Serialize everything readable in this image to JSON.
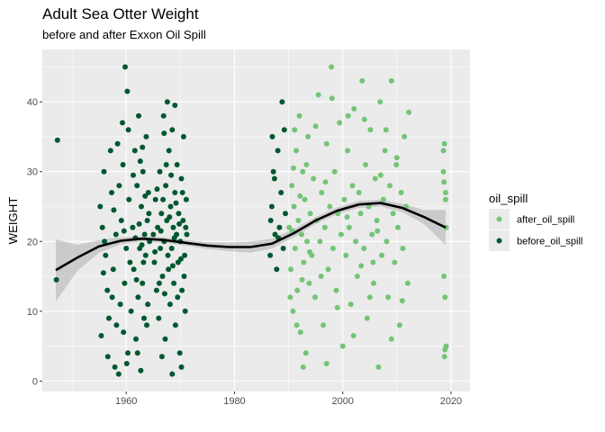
{
  "chart_data": {
    "type": "scatter",
    "title": "Adult Sea Otter Weight",
    "subtitle": "before and after Exxon Oil Spill",
    "xlabel": "",
    "ylabel": "WEIGHT",
    "xlim": [
      1944.5,
      2023.5
    ],
    "ylim": [
      -1.5,
      47.5
    ],
    "x_ticks": [
      1960,
      1980,
      2000,
      2020
    ],
    "y_ticks": [
      0,
      10,
      20,
      30,
      40
    ],
    "grid": true,
    "legend": {
      "title": "oil_spill",
      "position": "right",
      "entries": [
        {
          "label": "after_oil_spill",
          "color": "#74c476"
        },
        {
          "label": "before_oil_spill",
          "color": "#00582f"
        }
      ]
    },
    "colors": {
      "panel_background": "#ebebeb",
      "grid": "#ffffff",
      "smooth_line": "#000000",
      "smooth_band": "#999999"
    },
    "series": [
      {
        "name": "before_oil_spill",
        "color": "#00582f",
        "points": [
          [
            1947.3,
            34.5
          ],
          [
            1947.1,
            14.5
          ],
          [
            1955.2,
            25.0
          ],
          [
            1955.6,
            22.0
          ],
          [
            1955.9,
            30.0
          ],
          [
            1956.2,
            18.0
          ],
          [
            1956.5,
            13.0
          ],
          [
            1956.8,
            9.0
          ],
          [
            1957.1,
            33.0
          ],
          [
            1957.3,
            27.0
          ],
          [
            1957.6,
            16.0
          ],
          [
            1957.9,
            2.0
          ],
          [
            1958.1,
            21.0
          ],
          [
            1958.4,
            34.0
          ],
          [
            1958.6,
            1.0
          ],
          [
            1958.9,
            11.0
          ],
          [
            1955.4,
            6.5
          ],
          [
            1956.6,
            3.5
          ],
          [
            1957.4,
            12.0
          ],
          [
            1958.2,
            8.0
          ],
          [
            1956.0,
            20.0
          ],
          [
            1957.7,
            24.5
          ],
          [
            1955.8,
            15.5
          ],
          [
            1958.7,
            28.0
          ],
          [
            1959.1,
            23.0
          ],
          [
            1959.3,
            37.0
          ],
          [
            1959.5,
            7.0
          ],
          [
            1959.7,
            14.0
          ],
          [
            1959.8,
            45.0
          ],
          [
            1960.0,
            19.0
          ],
          [
            1960.2,
            41.5
          ],
          [
            1960.3,
            4.0
          ],
          [
            1960.5,
            26.0
          ],
          [
            1960.7,
            17.0
          ],
          [
            1960.9,
            10.0
          ],
          [
            1959.4,
            31.0
          ],
          [
            1960.4,
            36.0
          ],
          [
            1960.1,
            2.5
          ],
          [
            1959.6,
            21.5
          ],
          [
            1961.2,
            22.0
          ],
          [
            1961.4,
            16.0
          ],
          [
            1961.6,
            33.0
          ],
          [
            1961.8,
            6.0
          ],
          [
            1962.0,
            28.0
          ],
          [
            1962.2,
            12.0
          ],
          [
            1962.3,
            38.0
          ],
          [
            1962.5,
            19.0
          ],
          [
            1962.7,
            1.5
          ],
          [
            1962.8,
            25.0
          ],
          [
            1963.0,
            14.0
          ],
          [
            1963.1,
            30.0
          ],
          [
            1963.3,
            9.0
          ],
          [
            1963.4,
            21.0
          ],
          [
            1963.6,
            18.0
          ],
          [
            1963.7,
            35.0
          ],
          [
            1963.9,
            23.0
          ],
          [
            1964.0,
            11.0
          ],
          [
            1964.1,
            27.0
          ],
          [
            1964.3,
            20.0
          ],
          [
            1961.3,
            29.5
          ],
          [
            1961.7,
            20.5
          ],
          [
            1962.1,
            4.0
          ],
          [
            1962.6,
            31.5
          ],
          [
            1963.2,
            17.0
          ],
          [
            1963.8,
            8.0
          ],
          [
            1964.2,
            24.0
          ],
          [
            1962.4,
            22.5
          ],
          [
            1963.5,
            26.5
          ],
          [
            1961.9,
            14.5
          ],
          [
            1962.9,
            19.5
          ],
          [
            1963.0,
            33.5
          ],
          [
            1965.0,
            21.0
          ],
          [
            1965.2,
            17.0
          ],
          [
            1965.4,
            26.0
          ],
          [
            1965.6,
            13.0
          ],
          [
            1965.8,
            22.0
          ],
          [
            1966.0,
            9.0
          ],
          [
            1966.2,
            30.0
          ],
          [
            1966.3,
            19.0
          ],
          [
            1966.5,
            24.0
          ],
          [
            1966.7,
            15.0
          ],
          [
            1966.9,
            38.0
          ],
          [
            1967.0,
            20.0
          ],
          [
            1967.2,
            6.0
          ],
          [
            1967.3,
            28.0
          ],
          [
            1967.5,
            23.0
          ],
          [
            1967.6,
            40.0
          ],
          [
            1967.8,
            16.0
          ],
          [
            1967.9,
            33.0
          ],
          [
            1968.1,
            11.0
          ],
          [
            1968.2,
            25.0
          ],
          [
            1968.4,
            19.0
          ],
          [
            1968.5,
            36.0
          ],
          [
            1968.7,
            22.0
          ],
          [
            1968.8,
            14.0
          ],
          [
            1969.0,
            27.0
          ],
          [
            1969.1,
            8.0
          ],
          [
            1969.3,
            21.0
          ],
          [
            1969.4,
            31.0
          ],
          [
            1969.6,
            17.0
          ],
          [
            1969.7,
            24.0
          ],
          [
            1969.9,
            4.0
          ],
          [
            1970.0,
            20.0
          ],
          [
            1970.2,
            29.0
          ],
          [
            1970.3,
            13.0
          ],
          [
            1970.5,
            23.0
          ],
          [
            1970.6,
            35.0
          ],
          [
            1970.8,
            18.0
          ],
          [
            1970.9,
            10.0
          ],
          [
            1971.1,
            26.0
          ],
          [
            1971.2,
            21.0
          ],
          [
            1965.3,
            18.5
          ],
          [
            1965.7,
            27.5
          ],
          [
            1966.1,
            14.0
          ],
          [
            1966.4,
            21.5
          ],
          [
            1966.8,
            26.0
          ],
          [
            1967.1,
            12.5
          ],
          [
            1967.4,
            31.0
          ],
          [
            1967.7,
            18.0
          ],
          [
            1968.0,
            23.5
          ],
          [
            1968.3,
            29.5
          ],
          [
            1968.6,
            16.5
          ],
          [
            1968.9,
            20.5
          ],
          [
            1969.2,
            25.5
          ],
          [
            1969.5,
            12.0
          ],
          [
            1969.8,
            22.5
          ],
          [
            1970.1,
            17.5
          ],
          [
            1970.4,
            27.0
          ],
          [
            1970.7,
            15.0
          ],
          [
            1971.0,
            22.0
          ],
          [
            1966.6,
            3.5
          ],
          [
            1969.0,
            39.5
          ],
          [
            1970.2,
            2.0
          ],
          [
            1967.0,
            35.5
          ],
          [
            1968.5,
            1.0
          ],
          [
            1986.6,
            18.0
          ],
          [
            1986.9,
            25.0
          ],
          [
            1987.2,
            30.0
          ],
          [
            1987.5,
            21.0
          ],
          [
            1987.8,
            16.0
          ],
          [
            1988.0,
            33.0
          ],
          [
            1988.3,
            22.0
          ],
          [
            1988.6,
            27.0
          ],
          [
            1988.8,
            40.0
          ],
          [
            1989.0,
            19.0
          ],
          [
            1989.2,
            36.0
          ],
          [
            1989.4,
            24.0
          ],
          [
            1986.7,
            23.0
          ],
          [
            1987.0,
            35.0
          ],
          [
            1987.4,
            29.0
          ],
          [
            1988.1,
            20.5
          ]
        ]
      },
      {
        "name": "after_oil_spill",
        "color": "#74c476",
        "points": [
          [
            1990.1,
            22.0
          ],
          [
            1990.4,
            16.0
          ],
          [
            1990.6,
            28.0
          ],
          [
            1990.8,
            10.0
          ],
          [
            1991.0,
            25.0
          ],
          [
            1991.2,
            19.0
          ],
          [
            1991.4,
            33.0
          ],
          [
            1991.6,
            13.0
          ],
          [
            1991.8,
            23.0
          ],
          [
            1992.0,
            38.0
          ],
          [
            1992.2,
            7.0
          ],
          [
            1992.4,
            21.0
          ],
          [
            1992.6,
            30.0
          ],
          [
            1992.8,
            17.0
          ],
          [
            1993.0,
            26.0
          ],
          [
            1993.2,
            4.0
          ],
          [
            1993.4,
            20.0
          ],
          [
            1993.6,
            35.0
          ],
          [
            1993.8,
            14.0
          ],
          [
            1994.0,
            24.0
          ],
          [
            1990.3,
            12.0
          ],
          [
            1990.9,
            30.5
          ],
          [
            1991.5,
            8.0
          ],
          [
            1992.1,
            26.5
          ],
          [
            1992.7,
            2.0
          ],
          [
            1993.3,
            31.0
          ],
          [
            1993.9,
            18.5
          ],
          [
            1991.1,
            36.0
          ],
          [
            1992.5,
            14.5
          ],
          [
            1990.7,
            21.5
          ],
          [
            1994.3,
            18.0
          ],
          [
            1994.6,
            29.0
          ],
          [
            1994.9,
            12.0
          ],
          [
            1995.2,
            23.0
          ],
          [
            1995.5,
            41.0
          ],
          [
            1995.8,
            20.0
          ],
          [
            1996.1,
            27.0
          ],
          [
            1996.4,
            8.0
          ],
          [
            1996.7,
            22.0
          ],
          [
            1997.0,
            34.0
          ],
          [
            1997.3,
            16.0
          ],
          [
            1997.6,
            25.0
          ],
          [
            1997.9,
            45.0
          ],
          [
            1998.2,
            19.0
          ],
          [
            1998.5,
            30.0
          ],
          [
            1998.8,
            13.0
          ],
          [
            1999.1,
            24.0
          ],
          [
            1999.4,
            37.0
          ],
          [
            1999.7,
            21.0
          ],
          [
            2000.0,
            5.0
          ],
          [
            2000.3,
            26.0
          ],
          [
            2000.6,
            18.0
          ],
          [
            2000.9,
            33.0
          ],
          [
            2001.2,
            22.0
          ],
          [
            2001.5,
            11.0
          ],
          [
            2001.8,
            28.0
          ],
          [
            2002.1,
            39.0
          ],
          [
            2002.4,
            20.0
          ],
          [
            2002.7,
            15.0
          ],
          [
            2003.0,
            27.0
          ],
          [
            2003.3,
            24.0
          ],
          [
            2003.6,
            43.0
          ],
          [
            2003.9,
            19.0
          ],
          [
            2004.2,
            31.0
          ],
          [
            2004.5,
            9.0
          ],
          [
            2004.8,
            25.0
          ],
          [
            2005.1,
            36.0
          ],
          [
            2005.4,
            21.0
          ],
          [
            2005.7,
            14.0
          ],
          [
            2006.0,
            29.0
          ],
          [
            2006.3,
            23.0
          ],
          [
            2006.6,
            2.0
          ],
          [
            2006.9,
            40.0
          ],
          [
            2007.2,
            18.0
          ],
          [
            2007.5,
            26.0
          ],
          [
            2007.8,
            33.0
          ],
          [
            2008.1,
            20.0
          ],
          [
            2008.4,
            12.0
          ],
          [
            2008.7,
            28.0
          ],
          [
            2009.0,
            43.0
          ],
          [
            2009.3,
            24.0
          ],
          [
            2009.6,
            17.0
          ],
          [
            2009.9,
            31.0
          ],
          [
            2010.2,
            22.0
          ],
          [
            2010.5,
            8.0
          ],
          [
            2010.8,
            27.0
          ],
          [
            2011.1,
            19.0
          ],
          [
            2011.4,
            35.0
          ],
          [
            2011.7,
            25.0
          ],
          [
            2012.0,
            14.0
          ],
          [
            1995.0,
            36.5
          ],
          [
            1996.0,
            15.0
          ],
          [
            1998.0,
            40.5
          ],
          [
            1999.0,
            10.5
          ],
          [
            2001.0,
            38.0
          ],
          [
            2002.0,
            6.5
          ],
          [
            2003.4,
            16.5
          ],
          [
            2004.0,
            37.5
          ],
          [
            2005.0,
            12.0
          ],
          [
            2007.0,
            29.5
          ],
          [
            2008.0,
            36.0
          ],
          [
            2009.0,
            6.0
          ],
          [
            2010.0,
            32.0
          ],
          [
            2011.0,
            11.5
          ],
          [
            2012.2,
            38.5
          ],
          [
            1997.0,
            2.5
          ],
          [
            2005.6,
            17.0
          ],
          [
            2006.4,
            21.5
          ],
          [
            2000.8,
            23.5
          ],
          [
            1996.8,
            28.5
          ],
          [
            2018.6,
            30.0
          ],
          [
            2018.8,
            34.0
          ],
          [
            2019.0,
            27.0
          ],
          [
            2018.7,
            15.0
          ],
          [
            2018.9,
            12.0
          ],
          [
            2019.1,
            5.0
          ],
          [
            2018.8,
            3.5
          ],
          [
            2019.0,
            26.0
          ],
          [
            2018.6,
            33.0
          ],
          [
            2019.1,
            22.0
          ],
          [
            2018.9,
            4.5
          ],
          [
            2018.7,
            28.5
          ]
        ]
      }
    ],
    "smooth": {
      "type": "loess",
      "color": "#000000",
      "x": [
        1947,
        1951,
        1955,
        1959,
        1963,
        1967,
        1971,
        1975,
        1979,
        1983,
        1987,
        1991,
        1995,
        1999,
        2003,
        2007,
        2011,
        2015,
        2019
      ],
      "y": [
        15.9,
        17.7,
        19.3,
        20.1,
        20.4,
        20.2,
        19.8,
        19.4,
        19.2,
        19.2,
        19.7,
        21.2,
        23.0,
        24.4,
        25.3,
        25.5,
        24.8,
        23.5,
        22.0
      ],
      "lower": [
        11.4,
        15.8,
        18.4,
        19.6,
        20.0,
        19.8,
        19.4,
        18.9,
        18.6,
        18.4,
        19.0,
        20.6,
        22.5,
        23.9,
        24.8,
        25.0,
        24.2,
        22.5,
        19.5
      ],
      "upper": [
        20.3,
        19.5,
        20.2,
        20.6,
        20.8,
        20.6,
        20.2,
        19.9,
        19.8,
        20.0,
        20.4,
        21.8,
        23.5,
        24.9,
        25.8,
        26.0,
        25.4,
        24.5,
        24.5
      ]
    }
  }
}
